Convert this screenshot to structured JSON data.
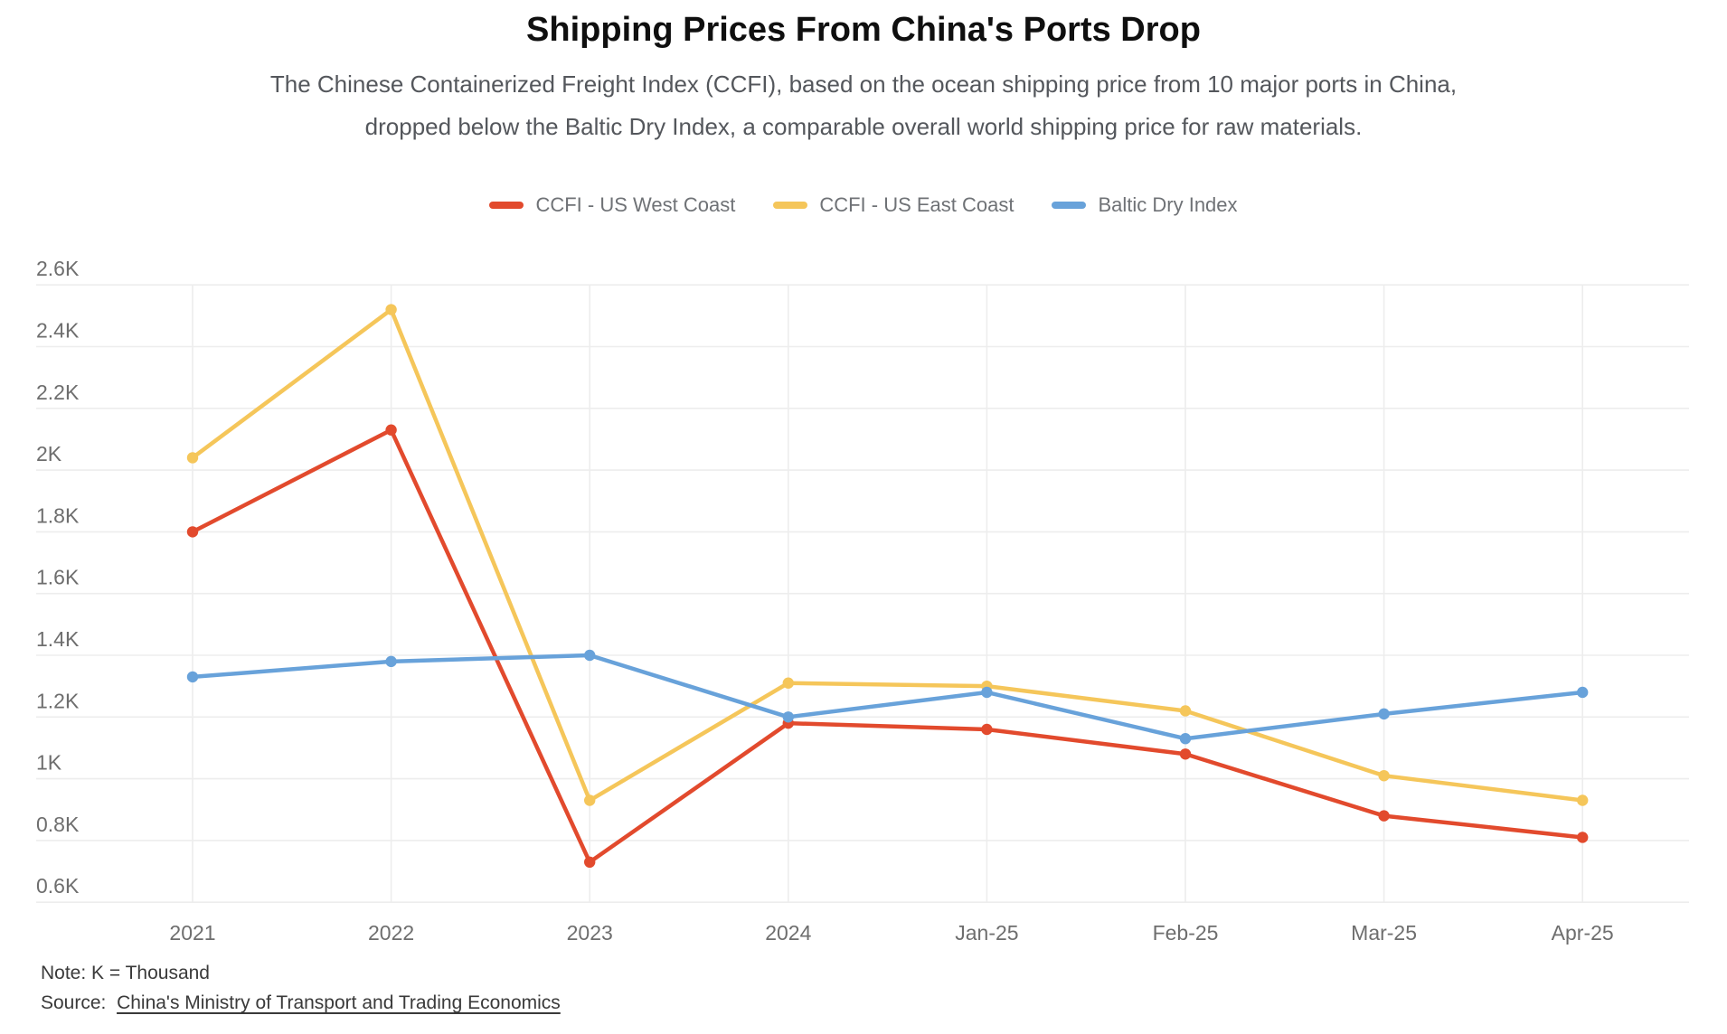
{
  "header": {
    "title": "Shipping Prices From China's Ports Drop",
    "subtitle_line1": "The Chinese Containerized Freight Index (CCFI), based on the ocean shipping price from 10 major ports in China,",
    "subtitle_line2": "dropped below the Baltic Dry Index, a comparable overall world shipping price for raw materials."
  },
  "legend": {
    "items": [
      {
        "label": "CCFI - US West Coast",
        "color": "#E24A2D"
      },
      {
        "label": "CCFI - US East Coast",
        "color": "#F5C65A"
      },
      {
        "label": "Baltic Dry Index",
        "color": "#68A2DA"
      }
    ]
  },
  "footer": {
    "note": "Note: K = Thousand",
    "source_prefix": "Source:",
    "source_link": "China's Ministry of Transport and Trading Economics"
  },
  "colors": {
    "grid": "#EDEDED",
    "tick_text": "#6E6E6E",
    "title_text": "#0F0F0F",
    "subtitle_text": "#54575C",
    "note_text": "#3A3A3A",
    "background": "#FFFFFF"
  },
  "chart_data": {
    "type": "line",
    "title": "Shipping Prices From China's Ports Drop",
    "categories": [
      "2021",
      "2022",
      "2023",
      "2024",
      "Jan-25",
      "Feb-25",
      "Mar-25",
      "Apr-25"
    ],
    "series": [
      {
        "name": "CCFI - US West Coast",
        "color": "#E24A2D",
        "values": [
          1800,
          2130,
          730,
          1180,
          1160,
          1080,
          880,
          810
        ]
      },
      {
        "name": "CCFI - US East Coast",
        "color": "#F5C65A",
        "values": [
          2040,
          2520,
          930,
          1310,
          1300,
          1220,
          1010,
          930
        ]
      },
      {
        "name": "Baltic Dry Index",
        "color": "#68A2DA",
        "values": [
          1330,
          1380,
          1400,
          1200,
          1280,
          1130,
          1210,
          1280
        ]
      }
    ],
    "ylim": [
      600,
      2600
    ],
    "y_tick_step": 200,
    "y_tick_labels": [
      "0.6K",
      "0.8K",
      "1K",
      "1.2K",
      "1.4K",
      "1.6K",
      "1.8K",
      "2K",
      "2.2K",
      "2.4K",
      "2.6K"
    ],
    "xlabel": "",
    "ylabel": "",
    "grid": true,
    "legend_position": "top",
    "unit_note": "K = Thousand"
  }
}
